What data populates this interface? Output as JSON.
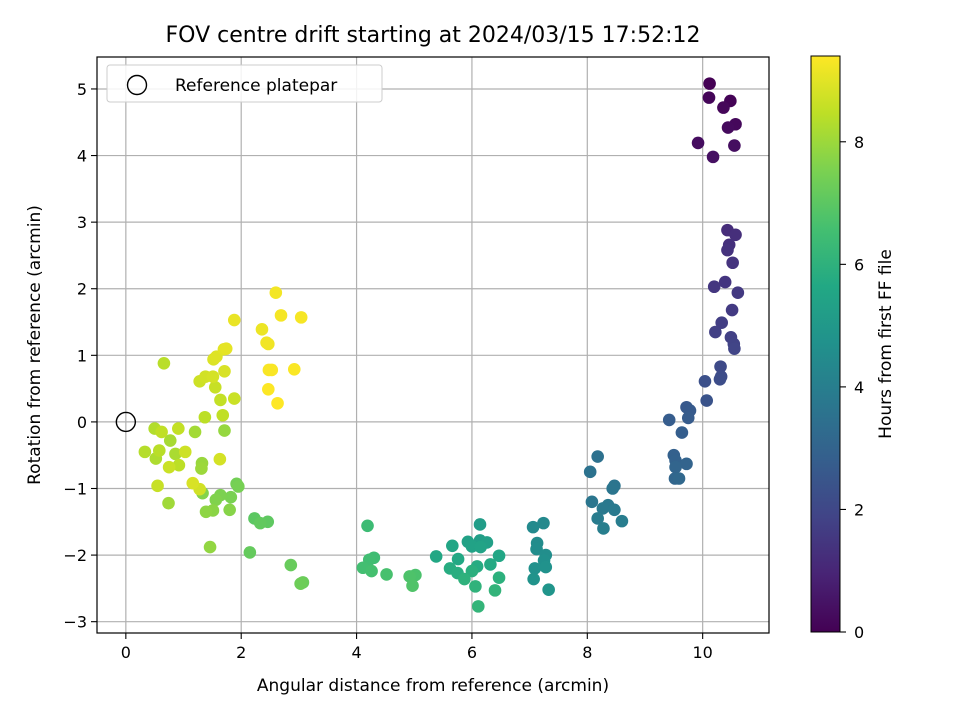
{
  "chart_data": {
    "type": "scatter",
    "title": "FOV centre drift starting at 2024/03/15 17:52:12",
    "xlabel": "Angular distance from reference (arcmin)",
    "ylabel": "Rotation from reference (arcmin)",
    "xlim": [
      -0.5,
      11.15
    ],
    "ylim": [
      -3.17,
      5.48
    ],
    "xticks": [
      0,
      2,
      4,
      6,
      8,
      10
    ],
    "yticks": [
      -3,
      -2,
      -1,
      0,
      1,
      2,
      3,
      4,
      5
    ],
    "grid": true,
    "legend": {
      "position": "top-left",
      "entries": [
        "Reference platepar"
      ]
    },
    "reference_point": {
      "x": 0,
      "y": 0
    },
    "colorbar": {
      "label": "Hours from first FF file",
      "colormap": "viridis",
      "range": [
        0,
        9.4
      ],
      "ticks": [
        0,
        2,
        4,
        6,
        8
      ]
    },
    "points": [
      {
        "x": 10.12,
        "y": 5.08,
        "t": 0.0
      },
      {
        "x": 10.48,
        "y": 4.82,
        "t": 0.05
      },
      {
        "x": 10.11,
        "y": 4.87,
        "t": 0.1
      },
      {
        "x": 10.36,
        "y": 4.72,
        "t": 0.15
      },
      {
        "x": 10.57,
        "y": 4.47,
        "t": 0.2
      },
      {
        "x": 10.44,
        "y": 4.42,
        "t": 0.25
      },
      {
        "x": 9.92,
        "y": 4.19,
        "t": 0.3
      },
      {
        "x": 10.55,
        "y": 4.15,
        "t": 0.35
      },
      {
        "x": 10.18,
        "y": 3.98,
        "t": 0.4
      },
      {
        "x": 10.43,
        "y": 2.88,
        "t": 1.2
      },
      {
        "x": 10.57,
        "y": 2.81,
        "t": 1.25
      },
      {
        "x": 10.46,
        "y": 2.66,
        "t": 1.3
      },
      {
        "x": 10.43,
        "y": 2.58,
        "t": 1.35
      },
      {
        "x": 10.52,
        "y": 2.39,
        "t": 1.4
      },
      {
        "x": 10.39,
        "y": 2.1,
        "t": 1.45
      },
      {
        "x": 10.2,
        "y": 2.03,
        "t": 1.5
      },
      {
        "x": 10.61,
        "y": 1.94,
        "t": 1.55
      },
      {
        "x": 10.51,
        "y": 1.68,
        "t": 1.6
      },
      {
        "x": 10.33,
        "y": 1.49,
        "t": 1.7
      },
      {
        "x": 10.22,
        "y": 1.35,
        "t": 1.75
      },
      {
        "x": 10.49,
        "y": 1.27,
        "t": 1.8
      },
      {
        "x": 10.54,
        "y": 1.17,
        "t": 1.85
      },
      {
        "x": 10.55,
        "y": 1.1,
        "t": 1.9
      },
      {
        "x": 10.31,
        "y": 0.83,
        "t": 2.1
      },
      {
        "x": 10.32,
        "y": 0.68,
        "t": 2.15
      },
      {
        "x": 10.3,
        "y": 0.64,
        "t": 2.2
      },
      {
        "x": 10.04,
        "y": 0.61,
        "t": 2.3
      },
      {
        "x": 10.07,
        "y": 0.32,
        "t": 2.4
      },
      {
        "x": 9.72,
        "y": 0.22,
        "t": 2.6
      },
      {
        "x": 9.78,
        "y": 0.17,
        "t": 2.65
      },
      {
        "x": 9.75,
        "y": 0.06,
        "t": 2.7
      },
      {
        "x": 9.42,
        "y": 0.03,
        "t": 2.75
      },
      {
        "x": 9.64,
        "y": -0.16,
        "t": 2.8
      },
      {
        "x": 9.5,
        "y": -0.5,
        "t": 2.9
      },
      {
        "x": 9.53,
        "y": -0.58,
        "t": 2.95
      },
      {
        "x": 9.72,
        "y": -0.63,
        "t": 3.0
      },
      {
        "x": 9.53,
        "y": -0.68,
        "t": 3.05
      },
      {
        "x": 9.52,
        "y": -0.85,
        "t": 3.1
      },
      {
        "x": 9.59,
        "y": -0.85,
        "t": 3.15
      },
      {
        "x": 8.18,
        "y": -0.52,
        "t": 3.5
      },
      {
        "x": 8.05,
        "y": -0.75,
        "t": 3.55
      },
      {
        "x": 8.47,
        "y": -0.96,
        "t": 3.6
      },
      {
        "x": 8.44,
        "y": -1.0,
        "t": 3.65
      },
      {
        "x": 8.08,
        "y": -1.2,
        "t": 3.7
      },
      {
        "x": 8.36,
        "y": -1.25,
        "t": 3.75
      },
      {
        "x": 8.27,
        "y": -1.3,
        "t": 3.8
      },
      {
        "x": 8.47,
        "y": -1.32,
        "t": 3.85
      },
      {
        "x": 8.18,
        "y": -1.45,
        "t": 3.9
      },
      {
        "x": 8.6,
        "y": -1.49,
        "t": 3.95
      },
      {
        "x": 8.28,
        "y": -1.6,
        "t": 4.0
      },
      {
        "x": 7.24,
        "y": -1.52,
        "t": 4.4
      },
      {
        "x": 7.06,
        "y": -1.58,
        "t": 4.45
      },
      {
        "x": 7.13,
        "y": -1.82,
        "t": 4.5
      },
      {
        "x": 7.12,
        "y": -1.91,
        "t": 4.55
      },
      {
        "x": 7.28,
        "y": -2.0,
        "t": 4.6
      },
      {
        "x": 7.25,
        "y": -2.08,
        "t": 4.65
      },
      {
        "x": 7.09,
        "y": -2.2,
        "t": 4.7
      },
      {
        "x": 7.28,
        "y": -2.18,
        "t": 4.75
      },
      {
        "x": 7.07,
        "y": -2.36,
        "t": 4.8
      },
      {
        "x": 7.33,
        "y": -2.52,
        "t": 4.85
      },
      {
        "x": 6.14,
        "y": -1.54,
        "t": 5.2
      },
      {
        "x": 6.14,
        "y": -1.78,
        "t": 5.25
      },
      {
        "x": 6.26,
        "y": -1.81,
        "t": 5.3
      },
      {
        "x": 5.93,
        "y": -1.8,
        "t": 5.35
      },
      {
        "x": 6.0,
        "y": -1.87,
        "t": 5.4
      },
      {
        "x": 6.15,
        "y": -1.88,
        "t": 5.45
      },
      {
        "x": 5.66,
        "y": -1.86,
        "t": 5.5
      },
      {
        "x": 6.47,
        "y": -2.01,
        "t": 5.55
      },
      {
        "x": 5.38,
        "y": -2.02,
        "t": 5.6
      },
      {
        "x": 5.76,
        "y": -2.06,
        "t": 5.65
      },
      {
        "x": 6.32,
        "y": -2.14,
        "t": 5.7
      },
      {
        "x": 6.09,
        "y": -2.17,
        "t": 5.75
      },
      {
        "x": 5.62,
        "y": -2.2,
        "t": 5.8
      },
      {
        "x": 5.75,
        "y": -2.27,
        "t": 5.85
      },
      {
        "x": 6.0,
        "y": -2.24,
        "t": 5.9
      },
      {
        "x": 6.47,
        "y": -2.34,
        "t": 5.95
      },
      {
        "x": 5.87,
        "y": -2.36,
        "t": 6.0
      },
      {
        "x": 6.06,
        "y": -2.47,
        "t": 6.05
      },
      {
        "x": 6.4,
        "y": -2.53,
        "t": 6.1
      },
      {
        "x": 6.11,
        "y": -2.77,
        "t": 6.15
      },
      {
        "x": 4.19,
        "y": -1.56,
        "t": 6.4
      },
      {
        "x": 4.3,
        "y": -2.04,
        "t": 6.45
      },
      {
        "x": 4.22,
        "y": -2.07,
        "t": 6.5
      },
      {
        "x": 4.11,
        "y": -2.19,
        "t": 6.55
      },
      {
        "x": 4.26,
        "y": -2.24,
        "t": 6.6
      },
      {
        "x": 4.52,
        "y": -2.29,
        "t": 6.65
      },
      {
        "x": 5.02,
        "y": -2.3,
        "t": 6.7
      },
      {
        "x": 4.92,
        "y": -2.32,
        "t": 6.75
      },
      {
        "x": 4.97,
        "y": -2.46,
        "t": 6.8
      },
      {
        "x": 2.23,
        "y": -1.45,
        "t": 7.0
      },
      {
        "x": 2.46,
        "y": -1.5,
        "t": 7.05
      },
      {
        "x": 2.33,
        "y": -1.52,
        "t": 7.1
      },
      {
        "x": 2.15,
        "y": -1.96,
        "t": 7.15
      },
      {
        "x": 2.86,
        "y": -2.15,
        "t": 7.2
      },
      {
        "x": 3.07,
        "y": -2.41,
        "t": 7.25
      },
      {
        "x": 3.03,
        "y": -2.43,
        "t": 7.3
      },
      {
        "x": 1.92,
        "y": -0.93,
        "t": 7.4
      },
      {
        "x": 1.95,
        "y": -0.97,
        "t": 7.45
      },
      {
        "x": 1.82,
        "y": -1.13,
        "t": 7.5
      },
      {
        "x": 1.64,
        "y": -1.1,
        "t": 7.55
      },
      {
        "x": 1.56,
        "y": -1.17,
        "t": 7.6
      },
      {
        "x": 1.33,
        "y": -1.07,
        "t": 7.65
      },
      {
        "x": 1.8,
        "y": -1.32,
        "t": 7.7
      },
      {
        "x": 1.51,
        "y": -1.33,
        "t": 7.75
      },
      {
        "x": 1.39,
        "y": -1.35,
        "t": 7.8
      },
      {
        "x": 1.46,
        "y": -1.88,
        "t": 7.85
      },
      {
        "x": 1.71,
        "y": -0.13,
        "t": 7.9
      },
      {
        "x": 1.32,
        "y": -0.62,
        "t": 7.95
      },
      {
        "x": 1.31,
        "y": -0.7,
        "t": 8.0
      },
      {
        "x": 0.74,
        "y": -1.22,
        "t": 8.05
      },
      {
        "x": 1.2,
        "y": -0.15,
        "t": 8.1
      },
      {
        "x": 0.77,
        "y": -0.28,
        "t": 8.15
      },
      {
        "x": 0.86,
        "y": -0.48,
        "t": 8.2
      },
      {
        "x": 0.52,
        "y": -0.55,
        "t": 8.25
      },
      {
        "x": 0.5,
        "y": -0.1,
        "t": 8.3
      },
      {
        "x": 0.33,
        "y": -0.45,
        "t": 8.35
      },
      {
        "x": 0.58,
        "y": -0.43,
        "t": 8.4
      },
      {
        "x": 0.92,
        "y": -0.65,
        "t": 8.45
      },
      {
        "x": 0.62,
        "y": -0.15,
        "t": 8.5
      },
      {
        "x": 0.91,
        "y": -0.1,
        "t": 8.55
      },
      {
        "x": 0.55,
        "y": -0.96,
        "t": 8.6
      },
      {
        "x": 0.75,
        "y": -0.68,
        "t": 8.65
      },
      {
        "x": 1.03,
        "y": -0.45,
        "t": 8.7
      },
      {
        "x": 1.28,
        "y": -1.01,
        "t": 8.75
      },
      {
        "x": 1.63,
        "y": -0.56,
        "t": 8.8
      },
      {
        "x": 1.16,
        "y": -0.92,
        "t": 8.85
      },
      {
        "x": 0.66,
        "y": 0.88,
        "t": 8.4
      },
      {
        "x": 1.37,
        "y": 0.07,
        "t": 8.45
      },
      {
        "x": 1.68,
        "y": 0.1,
        "t": 8.5
      },
      {
        "x": 1.64,
        "y": 0.33,
        "t": 8.55
      },
      {
        "x": 1.55,
        "y": 0.52,
        "t": 8.6
      },
      {
        "x": 1.88,
        "y": 0.35,
        "t": 8.65
      },
      {
        "x": 1.28,
        "y": 0.61,
        "t": 8.7
      },
      {
        "x": 1.38,
        "y": 0.68,
        "t": 8.75
      },
      {
        "x": 1.51,
        "y": 0.68,
        "t": 8.8
      },
      {
        "x": 1.71,
        "y": 0.76,
        "t": 8.85
      },
      {
        "x": 1.52,
        "y": 0.94,
        "t": 8.9
      },
      {
        "x": 1.57,
        "y": 0.98,
        "t": 8.95
      },
      {
        "x": 1.7,
        "y": 1.09,
        "t": 9.0
      },
      {
        "x": 1.74,
        "y": 1.1,
        "t": 9.05
      },
      {
        "x": 1.88,
        "y": 1.53,
        "t": 9.1
      },
      {
        "x": 2.36,
        "y": 1.39,
        "t": 9.15
      },
      {
        "x": 2.47,
        "y": 1.17,
        "t": 9.2
      },
      {
        "x": 2.44,
        "y": 1.19,
        "t": 9.22
      },
      {
        "x": 2.6,
        "y": 1.94,
        "t": 9.25
      },
      {
        "x": 2.69,
        "y": 1.6,
        "t": 9.28
      },
      {
        "x": 3.04,
        "y": 1.57,
        "t": 9.3
      },
      {
        "x": 2.48,
        "y": 0.78,
        "t": 9.32
      },
      {
        "x": 2.53,
        "y": 0.78,
        "t": 9.34
      },
      {
        "x": 2.92,
        "y": 0.79,
        "t": 9.36
      },
      {
        "x": 2.47,
        "y": 0.49,
        "t": 9.38
      },
      {
        "x": 2.63,
        "y": 0.28,
        "t": 9.4
      }
    ]
  }
}
